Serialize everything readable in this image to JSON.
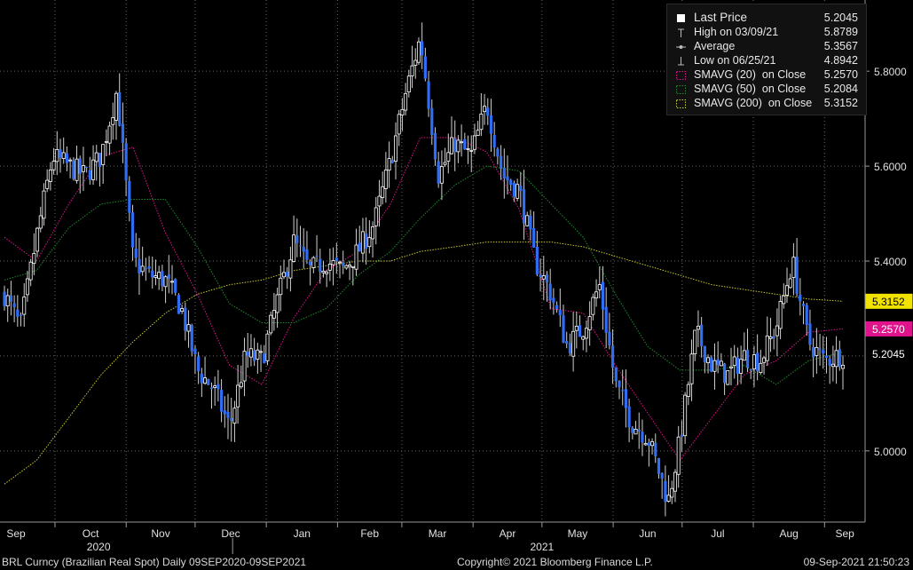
{
  "chart_data": {
    "type": "candlestick",
    "title": "BRL Curncy (Brazilian Real Spot)",
    "ylim": [
      4.85,
      5.95
    ],
    "yticks": [
      5.0,
      5.2,
      5.4,
      5.6,
      5.8
    ],
    "ytick_labels": [
      "5.0000",
      "",
      "5.4000",
      "5.6000",
      "5.8000"
    ],
    "xaxis_months": [
      "Sep",
      "Oct",
      "Nov",
      "Dec",
      "Jan",
      "Feb",
      "Mar",
      "Apr",
      "May",
      "Jun",
      "Jul",
      "Aug",
      "Sep"
    ],
    "xaxis_years": [
      "2020",
      "2021"
    ],
    "grid": true,
    "price_series": {
      "name": "BRL Curncy",
      "x": [
        "2020-09-09",
        "2020-09-16",
        "2020-09-23",
        "2020-09-30",
        "2020-10-07",
        "2020-10-14",
        "2020-10-21",
        "2020-10-28",
        "2020-11-04",
        "2020-11-11",
        "2020-11-18",
        "2020-11-25",
        "2020-12-02",
        "2020-12-09",
        "2020-12-16",
        "2020-12-23",
        "2020-12-30",
        "2021-01-06",
        "2021-01-13",
        "2021-01-20",
        "2021-01-27",
        "2021-02-03",
        "2021-02-10",
        "2021-02-17",
        "2021-02-24",
        "2021-03-03",
        "2021-03-09",
        "2021-03-17",
        "2021-03-24",
        "2021-03-31",
        "2021-04-07",
        "2021-04-14",
        "2021-04-21",
        "2021-04-28",
        "2021-05-05",
        "2021-05-12",
        "2021-05-19",
        "2021-05-26",
        "2021-06-02",
        "2021-06-09",
        "2021-06-16",
        "2021-06-25",
        "2021-06-30",
        "2021-07-07",
        "2021-07-14",
        "2021-07-21",
        "2021-07-28",
        "2021-08-04",
        "2021-08-11",
        "2021-08-18",
        "2021-08-25",
        "2021-09-01",
        "2021-09-09"
      ],
      "values": [
        5.33,
        5.26,
        5.45,
        5.62,
        5.6,
        5.58,
        5.62,
        5.76,
        5.4,
        5.37,
        5.36,
        5.3,
        5.17,
        5.13,
        5.05,
        5.2,
        5.19,
        5.32,
        5.44,
        5.38,
        5.4,
        5.38,
        5.42,
        5.48,
        5.61,
        5.76,
        5.87,
        5.58,
        5.65,
        5.62,
        5.73,
        5.58,
        5.55,
        5.4,
        5.33,
        5.22,
        5.26,
        5.35,
        5.14,
        5.06,
        5.03,
        4.894,
        5.02,
        5.25,
        5.18,
        5.16,
        5.2,
        5.19,
        5.26,
        5.4,
        5.23,
        5.19,
        5.2045
      ]
    },
    "series": [
      {
        "name": "SMAVG (20)  on Close",
        "color": "#e0128c",
        "x": [
          "2020-09-09",
          "2020-09-23",
          "2020-10-07",
          "2020-10-21",
          "2020-11-04",
          "2020-11-18",
          "2020-12-02",
          "2020-12-16",
          "2020-12-30",
          "2021-01-13",
          "2021-01-27",
          "2021-02-10",
          "2021-02-24",
          "2021-03-09",
          "2021-03-24",
          "2021-04-07",
          "2021-04-21",
          "2021-05-05",
          "2021-05-19",
          "2021-06-02",
          "2021-06-16",
          "2021-06-30",
          "2021-07-14",
          "2021-07-28",
          "2021-08-11",
          "2021-08-25",
          "2021-09-09"
        ],
        "values": [
          5.45,
          5.4,
          5.52,
          5.62,
          5.64,
          5.46,
          5.33,
          5.18,
          5.14,
          5.28,
          5.38,
          5.42,
          5.52,
          5.66,
          5.66,
          5.63,
          5.51,
          5.3,
          5.29,
          5.18,
          5.08,
          4.98,
          5.07,
          5.16,
          5.19,
          5.25,
          5.257
        ]
      },
      {
        "name": "SMAVG (50)  on Close",
        "color": "#1f8a2e",
        "x": [
          "2020-09-09",
          "2020-09-23",
          "2020-10-07",
          "2020-10-21",
          "2020-11-04",
          "2020-11-18",
          "2020-12-02",
          "2020-12-16",
          "2020-12-30",
          "2021-01-13",
          "2021-01-27",
          "2021-02-10",
          "2021-02-24",
          "2021-03-09",
          "2021-03-24",
          "2021-04-07",
          "2021-04-21",
          "2021-05-05",
          "2021-05-19",
          "2021-06-02",
          "2021-06-16",
          "2021-06-30",
          "2021-07-14",
          "2021-07-28",
          "2021-08-11",
          "2021-08-25",
          "2021-09-09"
        ],
        "values": [
          5.36,
          5.38,
          5.47,
          5.52,
          5.53,
          5.53,
          5.43,
          5.31,
          5.27,
          5.27,
          5.3,
          5.37,
          5.42,
          5.49,
          5.56,
          5.6,
          5.59,
          5.52,
          5.45,
          5.33,
          5.22,
          5.17,
          5.17,
          5.18,
          5.14,
          5.19,
          5.208
        ]
      },
      {
        "name": "SMAVG (200)  on Close",
        "color": "#c9c92a",
        "x": [
          "2020-09-09",
          "2020-09-23",
          "2020-10-07",
          "2020-10-21",
          "2020-11-04",
          "2020-11-18",
          "2020-12-02",
          "2020-12-16",
          "2020-12-30",
          "2021-01-13",
          "2021-01-27",
          "2021-02-10",
          "2021-02-24",
          "2021-03-09",
          "2021-03-24",
          "2021-04-07",
          "2021-04-21",
          "2021-05-05",
          "2021-05-19",
          "2021-06-02",
          "2021-06-16",
          "2021-06-30",
          "2021-07-14",
          "2021-07-28",
          "2021-08-11",
          "2021-08-25",
          "2021-09-09"
        ],
        "values": [
          4.93,
          4.98,
          5.07,
          5.16,
          5.23,
          5.29,
          5.33,
          5.35,
          5.36,
          5.38,
          5.39,
          5.4,
          5.4,
          5.42,
          5.43,
          5.44,
          5.44,
          5.44,
          5.43,
          5.41,
          5.39,
          5.37,
          5.35,
          5.34,
          5.33,
          5.32,
          5.3152
        ]
      }
    ],
    "right_axis_markers": [
      {
        "value": 5.3152,
        "label": "5.3152",
        "color": "#f2e200",
        "text_color": "#000000"
      },
      {
        "value": 5.257,
        "label": "5.2570",
        "color": "#e0128c",
        "text_color": "#ffffff"
      },
      {
        "value": 5.2045,
        "label": "5.2045",
        "color": "#000000",
        "text_color": "#ffffff"
      }
    ],
    "legend": {
      "placement": "top-right",
      "entries": [
        {
          "label": "Last Price",
          "value": "5.2045",
          "icon": "white-square-icon",
          "color": "#ffffff"
        },
        {
          "label": "High on 03/09/21",
          "value": "5.8789",
          "icon": "high-marker-icon",
          "color": "#bbbbbb"
        },
        {
          "label": "Average",
          "value": "5.3567",
          "icon": "average-marker-icon",
          "color": "#bbbbbb"
        },
        {
          "label": "Low on 06/25/21",
          "value": "4.8942",
          "icon": "low-marker-icon",
          "color": "#bbbbbb"
        },
        {
          "label": "SMAVG (20)  on Close",
          "value": "5.2570",
          "icon": "dotted-box-icon",
          "color": "#e0128c"
        },
        {
          "label": "SMAVG (50)  on Close",
          "value": "5.2084",
          "icon": "dotted-box-icon",
          "color": "#1f8a2e"
        },
        {
          "label": "SMAVG (200)  on Close",
          "value": "5.3152",
          "icon": "dotted-box-icon",
          "color": "#c9c92a"
        }
      ]
    }
  },
  "footer": {
    "left": "BRL Curncy (Brazilian Real Spot)  Daily 09SEP2020-09SEP2021",
    "center": "Copyright© 2021 Bloomberg Finance L.P.",
    "right": "09-Sep-2021 21:50:23"
  },
  "colors": {
    "background": "#000000",
    "candle": "#2f6df6",
    "candle_up": "#ffffff",
    "grid": "#666666",
    "axis": "#9a9a9a"
  }
}
